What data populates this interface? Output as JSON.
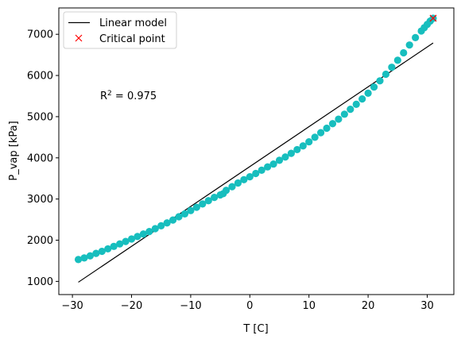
{
  "chart_data": {
    "type": "scatter",
    "xlabel": "T [C]",
    "ylabel": "P_vap [kPa]",
    "xlim": [
      -32.3,
      34.5
    ],
    "ylim": [
      680,
      7640
    ],
    "xticks": [
      -30,
      -20,
      -10,
      0,
      10,
      20,
      30
    ],
    "yticks": [
      1000,
      2000,
      3000,
      4000,
      5000,
      6000,
      7000
    ],
    "grid": false,
    "legend_position": "upper-left",
    "annotation": {
      "text_base": "R",
      "text_sup": "2",
      "text_rest": " = 0.975",
      "x": -25,
      "y": 5500
    },
    "series": [
      {
        "type": "scatter",
        "color": "#17bebe",
        "marker": "o",
        "x": [
          -29.0,
          -28.0,
          -27.0,
          -26.0,
          -25.0,
          -24.0,
          -23.0,
          -22.0,
          -21.0,
          -20.0,
          -19.0,
          -18.0,
          -17.0,
          -16.0,
          -15.0,
          -14.0,
          -13.0,
          -12.0,
          -11.0,
          -10.0,
          -9.0,
          -8.0,
          -7.0,
          -6.0,
          -5.0,
          -4.5,
          -4.0,
          -3.0,
          -2.0,
          -1.0,
          0.0,
          1.0,
          2.0,
          3.0,
          4.0,
          5.0,
          6.0,
          7.0,
          8.0,
          9.0,
          10.0,
          11.0,
          12.0,
          13.0,
          14.0,
          15.0,
          16.0,
          17.0,
          18.0,
          19.0,
          20.0,
          21.0,
          22.0,
          23.0,
          24.0,
          25.0,
          26.0,
          27.0,
          28.0,
          29.0,
          29.5,
          30.0,
          30.5,
          31.0
        ],
        "y": [
          1530,
          1570,
          1620,
          1680,
          1730,
          1790,
          1850,
          1910,
          1970,
          2030,
          2090,
          2150,
          2210,
          2280,
          2350,
          2420,
          2490,
          2570,
          2640,
          2720,
          2800,
          2880,
          2960,
          3040,
          3100,
          3130,
          3210,
          3300,
          3390,
          3470,
          3540,
          3620,
          3700,
          3780,
          3850,
          3940,
          4020,
          4110,
          4200,
          4290,
          4390,
          4500,
          4610,
          4720,
          4830,
          4940,
          5060,
          5180,
          5300,
          5430,
          5570,
          5720,
          5870,
          6030,
          6200,
          6370,
          6550,
          6740,
          6920,
          7080,
          7160,
          7240,
          7320,
          7390
        ]
      },
      {
        "type": "line",
        "name": "Linear model",
        "color": "#000000",
        "x": [
          -29,
          31
        ],
        "y": [
          980,
          6790
        ]
      },
      {
        "type": "scatter",
        "name": "Critical point",
        "color": "#ff0000",
        "marker": "x",
        "x": [
          31.0
        ],
        "y": [
          7390
        ]
      }
    ]
  }
}
